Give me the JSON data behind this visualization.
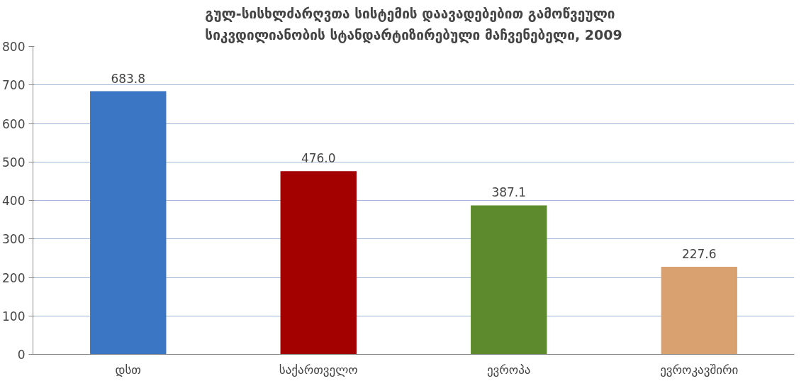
{
  "chart_data": {
    "type": "bar",
    "title": "გულ-სისხლძარღვთა სისტემის დაავადებებით გამოწვეული\nსიკვდილიანობის სტანდარტიზირებული მაჩვენებელი, 2009",
    "categories": [
      "დსთ",
      "საქართველო",
      "ევროპა",
      "ევროკავშირი"
    ],
    "values": [
      683.8,
      476.0,
      387.1,
      227.6
    ],
    "colors": [
      "#3a76c4",
      "#a30000",
      "#5c8a2c",
      "#d9a070"
    ],
    "ylim": [
      0,
      800
    ],
    "yticks": [
      0,
      100,
      200,
      300,
      400,
      500,
      600,
      700,
      800
    ],
    "value_labels": [
      "683.8",
      "476.0",
      "387.1",
      "227.6"
    ],
    "grid": "y"
  }
}
